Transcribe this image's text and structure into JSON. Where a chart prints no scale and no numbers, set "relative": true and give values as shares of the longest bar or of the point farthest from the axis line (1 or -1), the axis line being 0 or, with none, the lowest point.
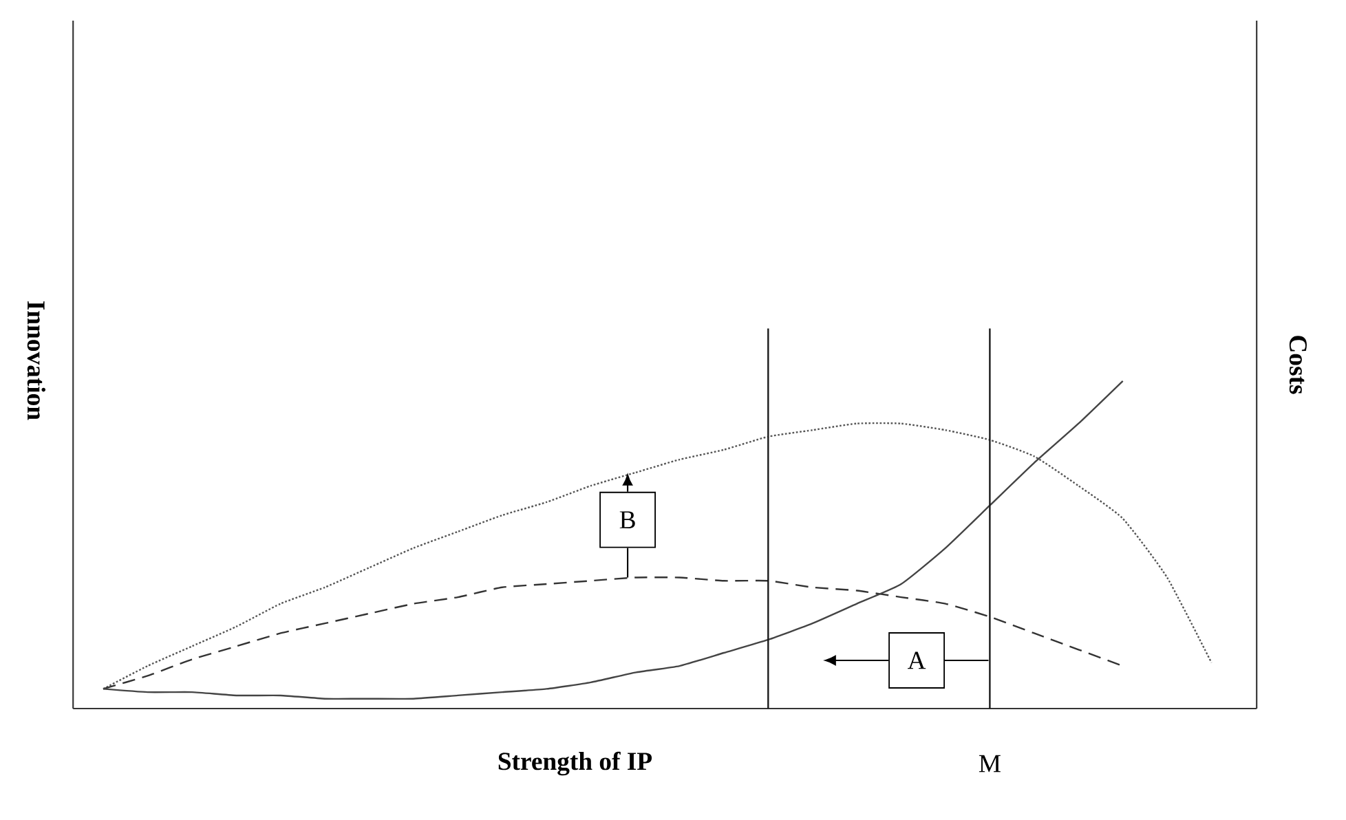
{
  "chart_data": {
    "type": "line",
    "relative": true,
    "xlabel": "Strength of IP",
    "ylabel": "Innovation",
    "y2label": "Costs",
    "categories": [
      null,
      null,
      null,
      null,
      null,
      null,
      null,
      null,
      null,
      null,
      null,
      null,
      null,
      null,
      null,
      null,
      null,
      null,
      null,
      null,
      null,
      null,
      null,
      null,
      null,
      null
    ],
    "series": [
      {
        "color": "#555555",
        "line_style": "dotted",
        "values": [
          0.06,
          0.13,
          0.19,
          0.25,
          0.32,
          0.37,
          0.43,
          0.49,
          0.54,
          0.59,
          0.63,
          0.68,
          0.72,
          0.76,
          0.79,
          0.83,
          0.85,
          0.87,
          0.87,
          0.85,
          0.82,
          0.77,
          0.68,
          0.58,
          0.4,
          0.14
        ]
      },
      {
        "color": "#333333",
        "line_style": "dashed",
        "values": [
          0.06,
          0.1,
          0.15,
          0.19,
          0.23,
          0.26,
          0.29,
          0.32,
          0.34,
          0.37,
          0.38,
          0.39,
          0.4,
          0.4,
          0.39,
          0.39,
          0.37,
          0.36,
          0.34,
          0.32,
          0.28,
          0.23,
          0.18,
          0.13,
          null,
          null
        ]
      },
      {
        "color": "#444444",
        "line_style": "solid",
        "values": [
          0.06,
          0.05,
          0.05,
          0.04,
          0.04,
          0.03,
          0.03,
          0.03,
          0.04,
          0.05,
          0.06,
          0.08,
          0.11,
          0.13,
          0.17,
          0.21,
          0.26,
          0.32,
          0.38,
          0.49,
          0.62,
          0.75,
          0.87,
          1,
          null,
          null
        ]
      }
    ],
    "annotations": [
      "A",
      "B",
      "M"
    ],
    "marker": "none"
  }
}
